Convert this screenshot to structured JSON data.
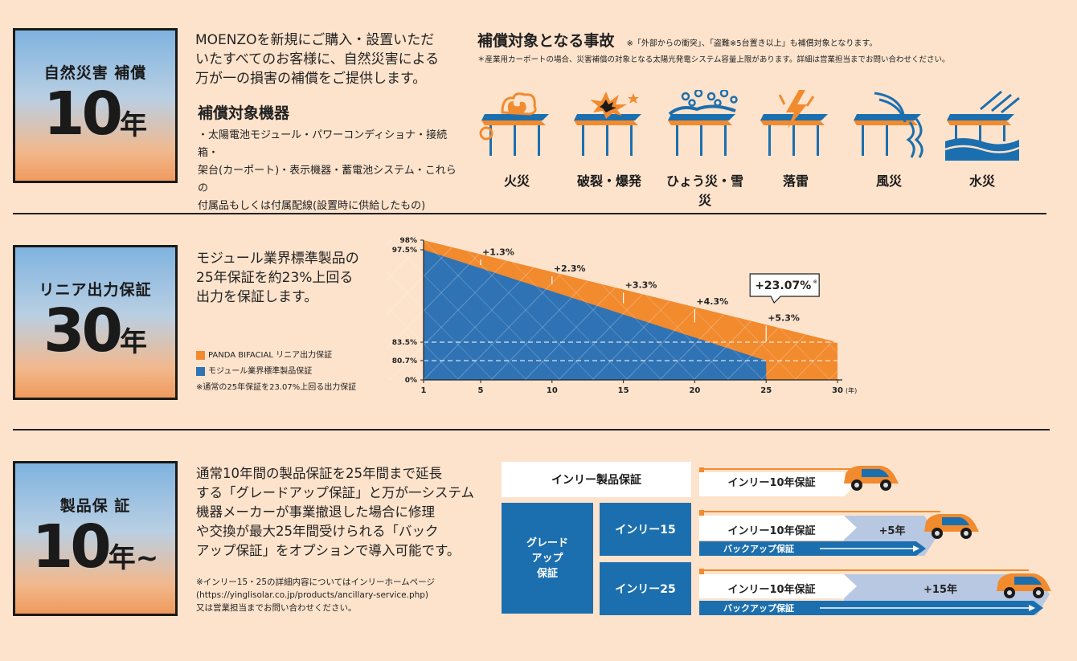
{
  "section1": {
    "badge_label": "自然災害 補償",
    "badge_number": "10",
    "badge_unit": "年",
    "intro": [
      "MOENZOを新規にご購入・設置いただ",
      "いたすべてのお客様に、自然災害による",
      "万が一の損害の補償をご提供します。"
    ],
    "equipment_title": "補償対象機器",
    "equipment_lines": [
      "・太陽電池モジュール・パワーコンディショナ・接続箱・",
      "架台(カーポート)・表示機器・蓄電池システム・これらの",
      "付属品もしくは付属配線(設置時に供給したもの)"
    ],
    "accident_title": "補償対象となる事故",
    "accident_note1": "※「外部からの衝突」、「盗難※5台置き以上」も補償対象となります。",
    "accident_note2": "＊産業用カーポートの場合、災害補償の対象となる太陽光発電システム容量上限があります。詳細は営業担当までお問い合わせください。",
    "icons": [
      {
        "icon": "fire-icon",
        "label": "火災"
      },
      {
        "icon": "explosion-icon",
        "label": "破裂・爆発"
      },
      {
        "icon": "hail-snow-icon",
        "label": "ひょう災・雪災"
      },
      {
        "icon": "lightning-icon",
        "label": "落雷"
      },
      {
        "icon": "wind-icon",
        "label": "風災"
      },
      {
        "icon": "flood-icon",
        "label": "水災"
      }
    ]
  },
  "section2": {
    "badge_label": "リニア出力保証",
    "badge_number": "30",
    "badge_unit": "年",
    "text": [
      "モジュール業界標準製品の",
      "25年保証を約23%上回る",
      "出力を保証します。"
    ],
    "legend": [
      {
        "label": "PANDA BIFACIAL リニア出力保証",
        "color": "#f28a2e"
      },
      {
        "label": "モジュール業界標準製品保証",
        "color": "#2f73b5"
      }
    ],
    "legend_note": "※通常の25年保証を23.07%上回る出力保証"
  },
  "chart_data": {
    "type": "area",
    "x_ticks": [
      "1",
      "5",
      "10",
      "15",
      "20",
      "25",
      "30"
    ],
    "x_unit": "(年)",
    "y_ticks": [
      "98%",
      "97.5%",
      "83.5%",
      "80.7%",
      "0%"
    ],
    "series": [
      {
        "name": "PANDA BIFACIAL リニア出力保証",
        "color": "#f28a2e",
        "x": [
          1,
          30
        ],
        "y": [
          98,
          83.5
        ]
      },
      {
        "name": "モジュール業界標準製品保証",
        "color": "#2f73b5",
        "x": [
          1,
          25
        ],
        "y": [
          97.5,
          80.7
        ]
      }
    ],
    "annotations": [
      {
        "x": 5,
        "label": "+1.3%"
      },
      {
        "x": 10,
        "label": "+2.3%"
      },
      {
        "x": 15,
        "label": "+3.3%"
      },
      {
        "x": 20,
        "label": "+4.3%"
      },
      {
        "x": 25,
        "label": "+5.3%"
      }
    ],
    "callout": "+23.07%",
    "callout_mark": "※"
  },
  "section3": {
    "badge_label": "製品保 証",
    "badge_number": "10",
    "badge_unit": "年~",
    "text": [
      "通常10年間の製品保証を25年間まで延長",
      "する「グレードアップ保証」と万が一システム",
      "機器メーカーが事業撤退した場合に修理",
      "や交換が最大25年間受けられる「バック",
      "アップ保証」をオプションで導入可能です。"
    ],
    "notes": [
      "※インリー15・25の詳細内容についてはインリーホームページ",
      "(https://yinglisolar.co.jp/products/ancillary-service.php)",
      "又は営業担当までお問い合わせください。"
    ],
    "diagram": {
      "product_warranty": "インリー製品保証",
      "upgrade": [
        "グレード",
        "アップ",
        "保証"
      ],
      "yingli15": "インリー15",
      "yingli25": "インリー25",
      "ten_year": "インリー10年保証",
      "backup": "バックアップ保証",
      "plus5": "+5年",
      "plus15": "+15年"
    }
  }
}
